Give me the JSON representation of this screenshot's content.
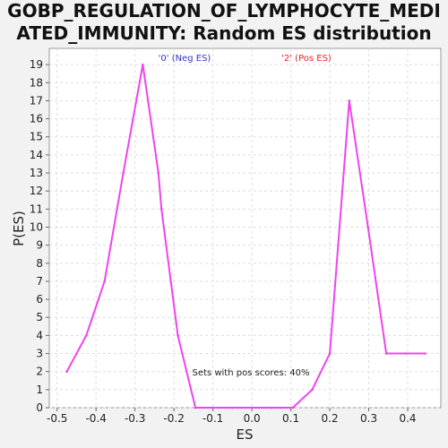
{
  "title_line1": "GOBP_REGULATION_OF_LYMPHOCYTE_MEDI",
  "title_line2": "ATED_IMMUNITY: Random ES distribution",
  "chart_data": {
    "type": "line",
    "title": "GOBP_REGULATION_OF_LYMPHOCYTE_MEDIATED_IMMUNITY: Random ES distribution",
    "xlabel": "ES",
    "ylabel": "P(ES)",
    "xlim": [
      -0.52,
      0.485
    ],
    "ylim": [
      0,
      19.9
    ],
    "xticks": [
      -0.5,
      -0.4,
      -0.3,
      -0.2,
      -0.1,
      0.0,
      0.1,
      0.2,
      0.3,
      0.4
    ],
    "xtick_labels": [
      "-0.5",
      "-0.4",
      "-0.3",
      "-0.2",
      "-0.1",
      "0.0",
      "0.1",
      "0.2",
      "0.3",
      "0.4"
    ],
    "yticks": [
      0,
      1,
      2,
      3,
      4,
      5,
      6,
      7,
      8,
      9,
      10,
      11,
      12,
      13,
      14,
      15,
      16,
      17,
      18,
      19
    ],
    "ytick_labels": [
      "0",
      "1",
      "2",
      "3",
      "4",
      "5",
      "6",
      "7",
      "8",
      "9",
      "10",
      "11",
      "12",
      "13",
      "14",
      "15",
      "16",
      "17",
      "18",
      "19"
    ],
    "grid": true,
    "legend": [
      {
        "label": "'0' (Neg ES)",
        "color": "#3333cc"
      },
      {
        "label": "'2' (Pos ES)",
        "color": "#ee2222"
      }
    ],
    "annotation": "Sets with pos scores: 40%",
    "series": [
      {
        "color": "#ee44ee",
        "x": [
          -0.475,
          -0.425,
          -0.378,
          -0.33,
          -0.28,
          -0.24,
          -0.232,
          -0.19,
          -0.145,
          -0.1,
          -0.05,
          0.0,
          0.05,
          0.105,
          0.155,
          0.2,
          0.25,
          0.298,
          0.345,
          0.395,
          0.445
        ],
        "y": [
          2,
          4,
          7,
          13,
          19,
          13,
          11,
          4,
          0,
          0,
          0,
          0,
          0,
          0,
          1,
          3,
          17,
          10,
          3,
          3,
          3
        ]
      }
    ]
  }
}
